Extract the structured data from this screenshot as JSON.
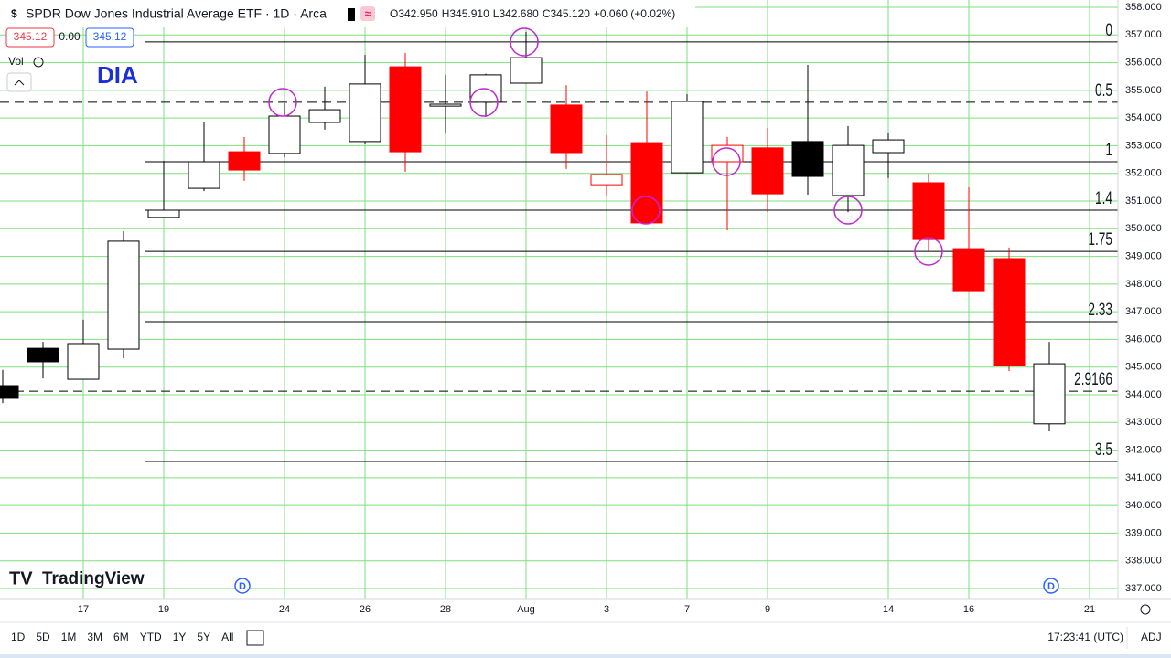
{
  "chart_data": {
    "type": "candlestick",
    "title": "SPDR Dow Jones Industrial Average ETF · 1D · Arca",
    "symbol_label": "DIA",
    "ohlc_header": [
      "O342.950",
      "H345.910",
      "L342.680",
      "C345.120",
      "+0.060 (+0.02%)"
    ],
    "price_boxes": [
      "345.12",
      "0.00",
      "345.12"
    ],
    "volume_label": "Vol",
    "categories": [
      null,
      null,
      "17",
      null,
      "19",
      null,
      null,
      "24",
      null,
      "26",
      null,
      "28",
      null,
      "Aug",
      null,
      "3",
      null,
      "7",
      null,
      "9",
      null,
      null,
      "14",
      null,
      "16",
      null,
      null,
      "21"
    ],
    "open": [
      344.33,
      345.68,
      344.56,
      345.65,
      350.41,
      351.46,
      352.78,
      352.72,
      353.84,
      353.15,
      355.85,
      354.43,
      354.57,
      355.26,
      354.47,
      351.59,
      353.11,
      352.02,
      352.42,
      352.92,
      353.15,
      351.2,
      352.75,
      351.66,
      349.28,
      348.92,
      342.95,
      null
    ],
    "high": [
      344.9,
      345.91,
      346.71,
      349.91,
      352.45,
      353.87,
      353.31,
      354.53,
      355.13,
      356.28,
      356.35,
      355.56,
      355.6,
      357.11,
      355.19,
      353.38,
      354.96,
      354.86,
      353.31,
      353.64,
      355.92,
      353.71,
      353.48,
      351.99,
      351.5,
      349.32,
      345.91,
      null
    ],
    "low": [
      343.7,
      344.59,
      344.55,
      345.32,
      350.4,
      351.36,
      351.73,
      352.58,
      353.58,
      353.05,
      352.06,
      353.44,
      354.04,
      355.26,
      352.16,
      351.17,
      350.2,
      352.0,
      349.94,
      350.6,
      351.23,
      350.6,
      351.83,
      349.18,
      347.76,
      344.86,
      342.68,
      null
    ],
    "close": [
      343.87,
      345.19,
      345.85,
      349.55,
      350.67,
      352.42,
      352.12,
      354.07,
      354.3,
      355.23,
      352.78,
      354.5,
      355.56,
      356.18,
      352.75,
      351.96,
      350.21,
      354.6,
      353.01,
      351.26,
      351.89,
      353.01,
      353.21,
      349.61,
      347.76,
      345.06,
      345.12,
      null
    ],
    "styles": [
      "black",
      "black",
      "hollow",
      "hollow",
      "hollow",
      "hollow",
      "red",
      "hollow",
      "hollow",
      "hollow",
      "red",
      "hollow",
      "hollow",
      "hollow",
      "red",
      "hollow-red",
      "red",
      "hollow",
      "hollow-red",
      "red",
      "black",
      "hollow",
      "hollow",
      "red",
      "red",
      "red",
      "hollow",
      null
    ],
    "ylim": [
      337,
      358
    ],
    "yticks": [
      {
        "value": 337,
        "label": "337.000"
      },
      {
        "value": 338,
        "label": "338.000"
      },
      {
        "value": 339,
        "label": "339.000"
      },
      {
        "value": 340,
        "label": "340.000"
      },
      {
        "value": 341,
        "label": "341.000"
      },
      {
        "value": 342,
        "label": "342.000"
      },
      {
        "value": 343,
        "label": "343.000"
      },
      {
        "value": 344,
        "label": "344.000"
      },
      {
        "value": 345,
        "label": "345.000"
      },
      {
        "value": 346,
        "label": "346.000"
      },
      {
        "value": 347,
        "label": "347.000"
      },
      {
        "value": 348,
        "label": "348.000"
      },
      {
        "value": 349,
        "label": "349.000"
      },
      {
        "value": 350,
        "label": "350.000"
      },
      {
        "value": 351,
        "label": "351.000"
      },
      {
        "value": 352,
        "label": "352.000"
      },
      {
        "value": 353,
        "label": "353.000"
      },
      {
        "value": 354,
        "label": "354.000"
      },
      {
        "value": 355,
        "label": "355.000"
      },
      {
        "value": 356,
        "label": "356.000"
      },
      {
        "value": 357,
        "label": "357.000"
      },
      {
        "value": 358,
        "label": "358.000"
      }
    ],
    "grid": true,
    "levels": [
      {
        "label": "0",
        "price": 356.75,
        "dashed": false
      },
      {
        "label": "0.5",
        "price": 354.57,
        "dashed": true
      },
      {
        "label": "1",
        "price": 352.42,
        "dashed": false
      },
      {
        "label": "1.4",
        "price": 350.67,
        "dashed": false
      },
      {
        "label": "1.75",
        "price": 349.18,
        "dashed": false
      },
      {
        "label": "2.33",
        "price": 346.64,
        "dashed": false
      },
      {
        "label": "2.9166",
        "price": 344.13,
        "dashed": true
      },
      {
        "label": "3.5",
        "price": 341.59,
        "dashed": false
      }
    ],
    "dividend_labels": [
      "D",
      "D"
    ]
  },
  "toolbar": {
    "ranges": [
      "1D",
      "5D",
      "1M",
      "3M",
      "6M",
      "YTD",
      "1Y",
      "5Y",
      "All"
    ],
    "clock": "17:23:41 (UTC)",
    "adj": "ADJ"
  },
  "brand": "TradingView"
}
